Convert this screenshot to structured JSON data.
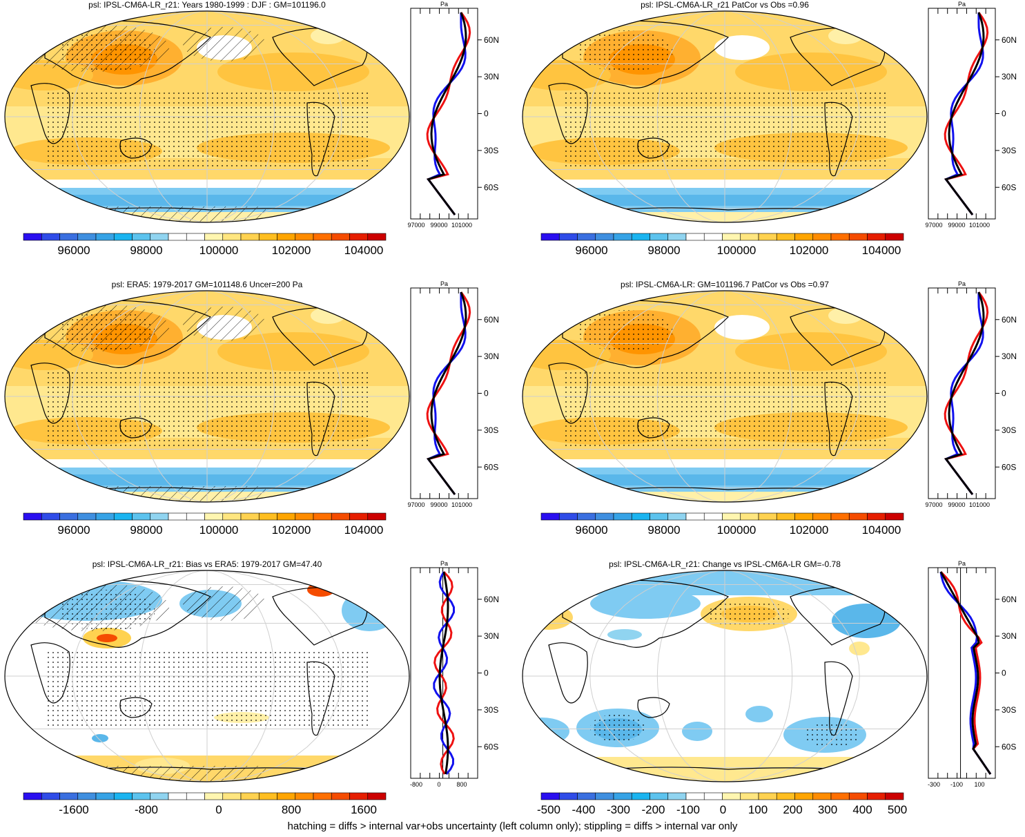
{
  "panels": [
    {
      "title": "psl: IPSL-CM6A-LR_r21: Years 1980-1999 : DJF : GM=101196.0",
      "variant": "abs",
      "hatch": true,
      "profile": {
        "unit": "Pa",
        "x_ticks": [
          "97000",
          "99000",
          "101000"
        ]
      },
      "colorbar_labels": [
        "96000",
        "98000",
        "100000",
        "102000",
        "104000"
      ]
    },
    {
      "title": "psl: IPSL-CM6A-LR_r21 PatCor vs Obs =0.96",
      "variant": "abs",
      "hatch": false,
      "profile": {
        "unit": "Pa",
        "x_ticks": [
          "97000",
          "99000",
          "101000"
        ]
      },
      "colorbar_labels": [
        "96000",
        "98000",
        "100000",
        "102000",
        "104000"
      ]
    },
    {
      "title": "psl: ERA5: 1979-2017 GM=101148.6 Uncer=200 Pa",
      "variant": "abs",
      "hatch": true,
      "profile": {
        "unit": "Pa",
        "x_ticks": [
          "97000",
          "99000",
          "101000"
        ]
      },
      "colorbar_labels": [
        "96000",
        "98000",
        "100000",
        "102000",
        "104000"
      ]
    },
    {
      "title": "psl: IPSL-CM6A-LR: GM=101196.7 PatCor vs Obs =0.97",
      "variant": "abs",
      "hatch": false,
      "profile": {
        "unit": "Pa",
        "x_ticks": [
          "97000",
          "99000",
          "101000"
        ]
      },
      "colorbar_labels": [
        "96000",
        "98000",
        "100000",
        "102000",
        "104000"
      ]
    },
    {
      "title": "psl: IPSL-CM6A-LR_r21: Bias vs ERA5: 1979-2017 GM=47.40",
      "variant": "bias",
      "hatch": true,
      "profile": {
        "unit": "Pa",
        "x_ticks": [
          "-800",
          "0",
          "800"
        ]
      },
      "colorbar_labels": [
        "-1600",
        "-800",
        "0",
        "800",
        "1600"
      ]
    },
    {
      "title": "psl: IPSL-CM6A-LR_r21: Change vs IPSL-CM6A-LR GM=-0.78",
      "variant": "change",
      "hatch": false,
      "profile": {
        "unit": "Pa",
        "x_ticks": [
          "-300",
          "-100",
          "100"
        ]
      },
      "colorbar_labels": [
        "-500",
        "-400",
        "-300",
        "-200",
        "-100",
        "0",
        "100",
        "200",
        "300",
        "400",
        "500"
      ]
    }
  ],
  "lat_labels": [
    "60N",
    "30N",
    "0",
    "30S",
    "60S"
  ],
  "colorbar_colors": [
    "#2a0ff0",
    "#2f4ce8",
    "#3a6fe0",
    "#3f8fe0",
    "#36a3e6",
    "#1ab4f0",
    "#5cc3ee",
    "#90d4f0",
    "#ffffff",
    "#ffffff",
    "#fff6b0",
    "#ffe680",
    "#ffd250",
    "#ffbe20",
    "#ffa500",
    "#ff8c00",
    "#ff6f00",
    "#f54c00",
    "#e61e00",
    "#cc0000"
  ],
  "footer": "hatching = diffs > internal var+obs uncertainty (left column only); stippling = diffs > internal var only"
}
